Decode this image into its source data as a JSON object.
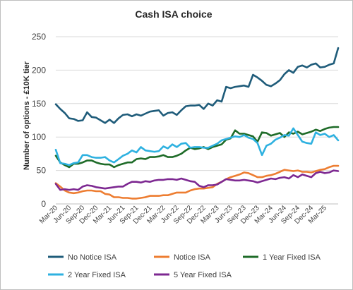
{
  "chart_data": {
    "type": "line",
    "title": "Cash ISA choice",
    "ylabel": "Number of options - £10K tier",
    "xlabel": "",
    "ylim": [
      0,
      250
    ],
    "yticks": [
      0,
      50,
      100,
      150,
      200,
      250
    ],
    "grid": "horizontal",
    "legend_position": "bottom",
    "x_tick_labels": [
      "Mar-20",
      "Jun-20",
      "Sep-20",
      "Dec-20",
      "Mar-21",
      "Jun-21",
      "Sep-21",
      "Dec-21",
      "Mar-22",
      "Jun-22",
      "Sep-22",
      "Dec-22",
      "Mar-23",
      "Jun-23",
      "Sep-23",
      "Dec-23",
      "Mar-24",
      "Jun-24",
      "Sep-24",
      "Dec-24",
      "Mar-25"
    ],
    "x_start": "Mar-20",
    "x_end": "Apr-25",
    "series": [
      {
        "name": "No Notice ISA",
        "color": "#1f5c7a",
        "values": [
          149,
          142,
          136,
          128,
          127,
          124,
          125,
          137,
          130,
          129,
          125,
          121,
          126,
          121,
          128,
          133,
          134,
          131,
          134,
          132,
          135,
          138,
          139,
          140,
          132,
          136,
          137,
          133,
          140,
          146,
          147,
          147,
          148,
          142,
          150,
          147,
          155,
          153,
          175,
          173,
          175,
          176,
          177,
          175,
          193,
          189,
          184,
          178,
          176,
          180,
          185,
          194,
          200,
          196,
          205,
          207,
          204,
          208,
          210,
          204,
          205,
          208,
          210,
          233
        ]
      },
      {
        "name": "Notice ISA",
        "color": "#ed7d31",
        "values": [
          31,
          26,
          20,
          17,
          16,
          17,
          19,
          20,
          20,
          19,
          19,
          15,
          14,
          10,
          10,
          9,
          9,
          8,
          8,
          9,
          10,
          12,
          12,
          12,
          13,
          13,
          15,
          17,
          17,
          17,
          20,
          22,
          23,
          23,
          24,
          25,
          30,
          33,
          37,
          40,
          42,
          44,
          47,
          46,
          43,
          40,
          40,
          42,
          43,
          45,
          48,
          51,
          50,
          49,
          50,
          48,
          48,
          47,
          49,
          51,
          52,
          55,
          57,
          57
        ]
      },
      {
        "name": "1 Year Fixed ISA",
        "color": "#1e6b28",
        "values": [
          72,
          62,
          58,
          55,
          60,
          60,
          62,
          65,
          65,
          62,
          60,
          59,
          59,
          55,
          58,
          60,
          62,
          62,
          67,
          68,
          67,
          70,
          70,
          71,
          73,
          70,
          70,
          72,
          75,
          80,
          84,
          82,
          83,
          85,
          82,
          85,
          87,
          89,
          96,
          98,
          110,
          105,
          105,
          103,
          101,
          93,
          107,
          106,
          102,
          104,
          106,
          100,
          107,
          105,
          108,
          104,
          106,
          108,
          111,
          109,
          112,
          114,
          115,
          115
        ]
      },
      {
        "name": "2 Year Fixed ISA",
        "color": "#2eb1e0",
        "values": [
          81,
          61,
          60,
          58,
          61,
          62,
          73,
          73,
          70,
          69,
          69,
          70,
          65,
          62,
          67,
          72,
          75,
          80,
          77,
          85,
          80,
          79,
          78,
          79,
          86,
          83,
          89,
          85,
          90,
          91,
          84,
          85,
          85,
          84,
          84,
          87,
          90,
          95,
          97,
          99,
          101,
          100,
          103,
          99,
          97,
          91,
          73,
          87,
          90,
          96,
          99,
          103,
          102,
          113,
          103,
          93,
          91,
          90,
          107,
          103,
          105,
          100,
          103,
          95
        ]
      },
      {
        "name": "5 Year Fixed ISA",
        "color": "#7d2891",
        "values": [
          30,
          21,
          22,
          21,
          22,
          21,
          26,
          28,
          27,
          25,
          24,
          23,
          24,
          25,
          26,
          26,
          30,
          33,
          33,
          32,
          34,
          33,
          35,
          36,
          36,
          37,
          37,
          36,
          38,
          36,
          34,
          33,
          27,
          25,
          28,
          28,
          29,
          33,
          37,
          36,
          35,
          35,
          36,
          35,
          34,
          32,
          34,
          36,
          38,
          37,
          39,
          40,
          38,
          43,
          40,
          44,
          42,
          40,
          46,
          48,
          46,
          47,
          50,
          49
        ]
      }
    ]
  }
}
